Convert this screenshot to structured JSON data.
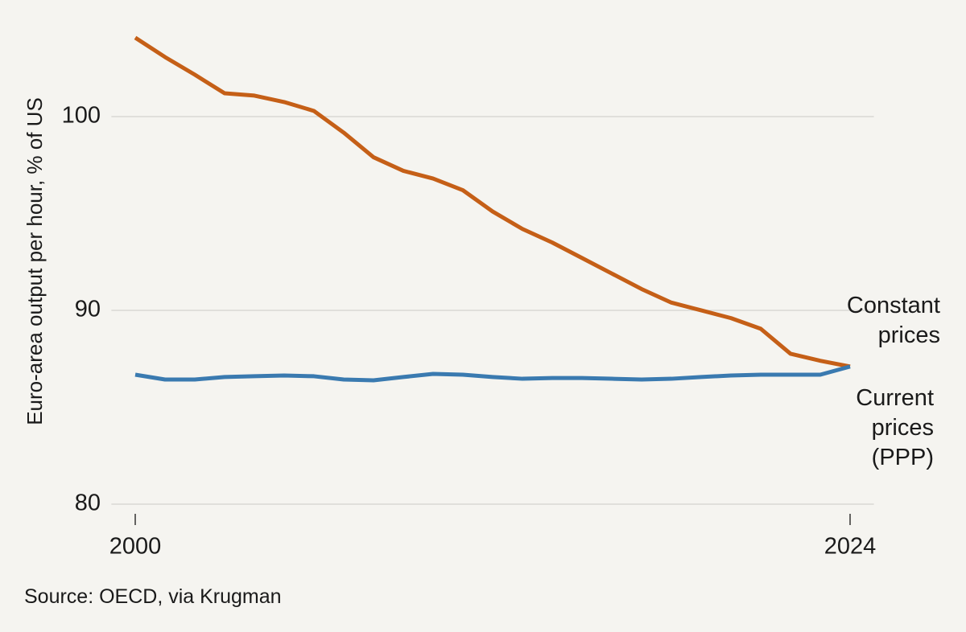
{
  "chart_data": {
    "type": "line",
    "y_label": "Euro-area output per hour, % of US",
    "source": "Source: OECD, via Krugman",
    "x": [
      2000,
      2001,
      2002,
      2003,
      2004,
      2005,
      2006,
      2007,
      2008,
      2009,
      2010,
      2011,
      2012,
      2013,
      2014,
      2015,
      2016,
      2017,
      2018,
      2019,
      2020,
      2021,
      2022,
      2023,
      2024
    ],
    "series": [
      {
        "name": "Constant prices",
        "color": "#c55f17",
        "values": [
          104.07,
          103.07,
          102.16,
          101.2,
          101.08,
          100.75,
          100.29,
          99.17,
          97.9,
          97.2,
          96.8,
          96.2,
          95.1,
          94.2,
          93.5,
          92.7,
          91.9,
          91.1,
          90.4,
          90.0,
          89.6,
          89.05,
          87.76,
          87.4,
          87.1
        ]
      },
      {
        "name": "Current prices (PPP)",
        "color": "#3a7ab0",
        "values": [
          86.68,
          86.43,
          86.43,
          86.56,
          86.6,
          86.64,
          86.6,
          86.43,
          86.39,
          86.56,
          86.72,
          86.68,
          86.56,
          86.47,
          86.51,
          86.51,
          86.47,
          86.43,
          86.47,
          86.56,
          86.64,
          86.68,
          86.68,
          86.68,
          87.1
        ]
      }
    ],
    "xlim": [
      1999.2,
      2024.8
    ],
    "xticks": [
      2000,
      2024
    ],
    "ylim": [
      80,
      104.5
    ],
    "yticks": [
      80,
      90,
      100
    ],
    "grid": true
  }
}
